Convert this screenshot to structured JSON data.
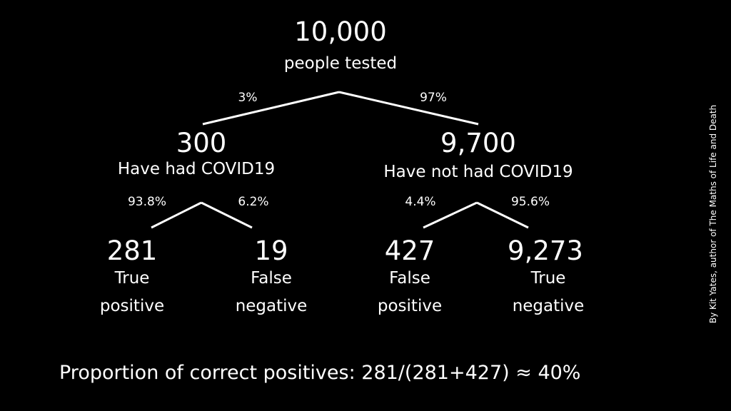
{
  "root": {
    "count": "10,000",
    "label": "people tested"
  },
  "level1": {
    "left_pct": "3%",
    "right_pct": "97%",
    "left": {
      "count": "300",
      "label": "Have had COVID19"
    },
    "right": {
      "count": "9,700",
      "label": "Have not had COVID19"
    }
  },
  "level2": {
    "left_left_pct": "93.8%",
    "left_right_pct": "6.2%",
    "right_left_pct": "4.4%",
    "right_right_pct": "95.6%"
  },
  "leaves": [
    {
      "count": "281",
      "label_line1": "True",
      "label_line2": "positive"
    },
    {
      "count": "19",
      "label_line1": "False",
      "label_line2": "negative"
    },
    {
      "count": "427",
      "label_line1": "False",
      "label_line2": "positive"
    },
    {
      "count": "9,273",
      "label_line1": "True",
      "label_line2": "negative"
    }
  ],
  "footer": "Proportion of correct positives: 281/(281+427) ≈ 40%",
  "credit": "By Kit Yates, author of The Maths of Life and Death",
  "colors": {
    "background": "#000000",
    "text": "#ffffff",
    "lines": "#ffffff"
  }
}
